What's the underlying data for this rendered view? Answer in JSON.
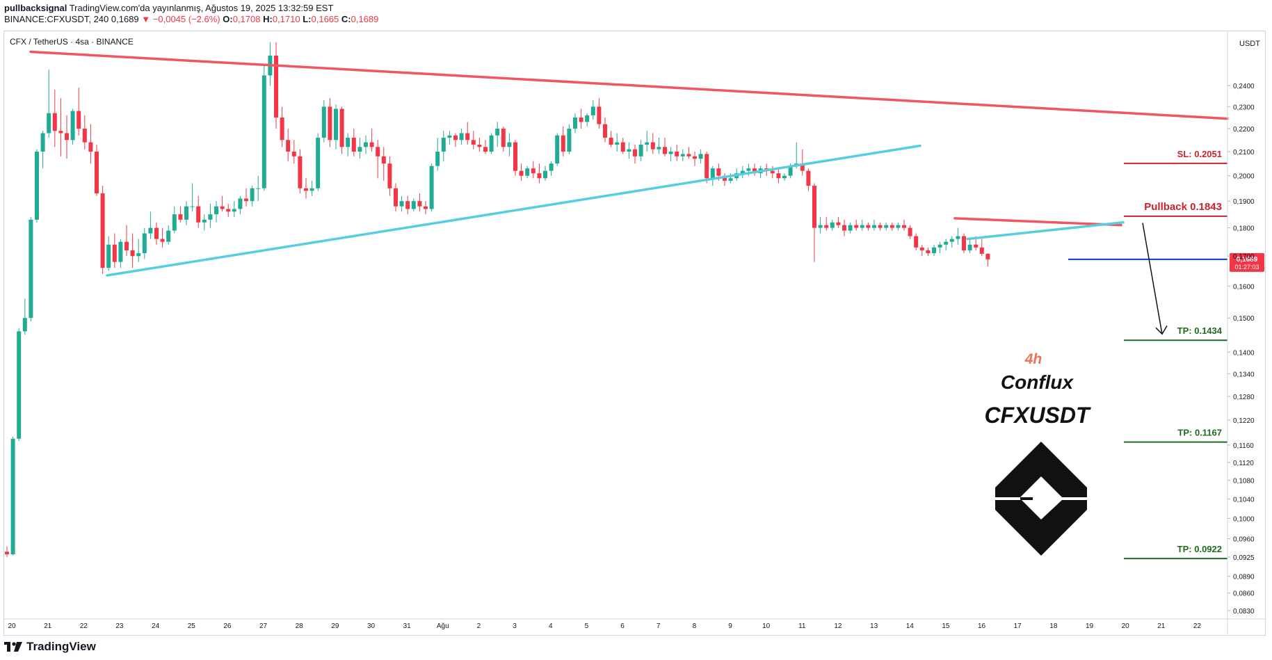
{
  "header": {
    "publisher": "pullbacksignal",
    "published_text": "TradingView.com'da yayınlanmış, Ağustos 19, 2025 13:32:59 EST",
    "symbol": "BINANCE:CFXUSDT, 240",
    "last": "0,1689",
    "change": "−0,0045 (−2.6%)",
    "o_label": "O:",
    "o_value": "0,1708",
    "h_label": "H:",
    "h_value": "0,1710",
    "l_label": "L:",
    "l_value": "0,1665",
    "c_label": "C:",
    "c_value": "0,1689"
  },
  "pane_legend": "CFX / TetherUS · 4sa · BINANCE",
  "currency": "USDT",
  "price_badge": {
    "price": "0,1689",
    "countdown": "01:27:03"
  },
  "brand": {
    "footer": "TradingView"
  },
  "annotations": {
    "timeframe": "4h",
    "name": "Conflux",
    "ticker": "CFXUSDT",
    "sl": "SL: 0.2051",
    "pullback": "Pullback 0.1843",
    "tp1": "TP: 0.1434",
    "tp2": "TP: 0.1167",
    "tp3": "TP: 0.0922"
  },
  "colors": {
    "up": "#22ab94",
    "down": "#f23645",
    "resistance": "#f05660",
    "support": "#55cfe0",
    "sl": "#c8232c",
    "tp": "#1e6b1e",
    "current": "#0d3cb5",
    "accent": "#ec7354"
  },
  "chart_data": {
    "type": "candlestick",
    "title": "CFX / TetherUS · 4sa · BINANCE",
    "y_axis_label": "USDT",
    "y_ticks": [
      "0,2400",
      "0,2300",
      "0,2200",
      "0,2100",
      "0,2000",
      "0,1900",
      "0,1800",
      "0,1700",
      "0,1600",
      "0,1500",
      "0,1400",
      "0,1340",
      "0,1280",
      "0,1220",
      "0,1160",
      "0,1120",
      "0,1080",
      "0,1040",
      "0,1000",
      "0,0960",
      "0,0925",
      "0,0890",
      "0,0860",
      "0,0830"
    ],
    "x_ticks": [
      "20",
      "21",
      "22",
      "23",
      "24",
      "25",
      "26",
      "27",
      "28",
      "29",
      "30",
      "31",
      "Ağu",
      "2",
      "3",
      "4",
      "5",
      "6",
      "7",
      "8",
      "9",
      "10",
      "11",
      "12",
      "13",
      "14",
      "15",
      "16",
      "17",
      "18",
      "19",
      "20",
      "21",
      "22"
    ],
    "ylim": [
      0.0825,
      0.262
    ],
    "log_scale": true,
    "candles": [
      [
        0.0935,
        0.0945,
        0.0925,
        0.093
      ],
      [
        0.093,
        0.118,
        0.0928,
        0.1175
      ],
      [
        0.1175,
        0.147,
        0.117,
        0.146
      ],
      [
        0.146,
        0.156,
        0.145,
        0.15
      ],
      [
        0.15,
        0.184,
        0.149,
        0.183
      ],
      [
        0.183,
        0.211,
        0.182,
        0.21
      ],
      [
        0.21,
        0.219,
        0.203,
        0.218
      ],
      [
        0.218,
        0.248,
        0.216,
        0.227
      ],
      [
        0.227,
        0.238,
        0.212,
        0.219
      ],
      [
        0.219,
        0.234,
        0.208,
        0.218
      ],
      [
        0.218,
        0.226,
        0.207,
        0.215
      ],
      [
        0.215,
        0.229,
        0.213,
        0.228
      ],
      [
        0.228,
        0.239,
        0.217,
        0.22
      ],
      [
        0.22,
        0.226,
        0.211,
        0.214
      ],
      [
        0.214,
        0.222,
        0.205,
        0.21
      ],
      [
        0.21,
        0.213,
        0.192,
        0.193
      ],
      [
        0.193,
        0.196,
        0.164,
        0.166
      ],
      [
        0.166,
        0.177,
        0.165,
        0.174
      ],
      [
        0.174,
        0.178,
        0.166,
        0.168
      ],
      [
        0.168,
        0.176,
        0.166,
        0.175
      ],
      [
        0.175,
        0.181,
        0.17,
        0.172
      ],
      [
        0.172,
        0.178,
        0.166,
        0.17
      ],
      [
        0.17,
        0.176,
        0.168,
        0.171
      ],
      [
        0.171,
        0.18,
        0.169,
        0.178
      ],
      [
        0.178,
        0.186,
        0.176,
        0.18
      ],
      [
        0.18,
        0.182,
        0.174,
        0.176
      ],
      [
        0.176,
        0.18,
        0.173,
        0.175
      ],
      [
        0.175,
        0.181,
        0.174,
        0.179
      ],
      [
        0.179,
        0.188,
        0.178,
        0.185
      ],
      [
        0.185,
        0.188,
        0.182,
        0.183
      ],
      [
        0.183,
        0.19,
        0.181,
        0.188
      ],
      [
        0.188,
        0.197,
        0.186,
        0.188
      ],
      [
        0.188,
        0.192,
        0.18,
        0.182
      ],
      [
        0.182,
        0.185,
        0.179,
        0.183
      ],
      [
        0.183,
        0.189,
        0.18,
        0.185
      ],
      [
        0.185,
        0.19,
        0.182,
        0.188
      ],
      [
        0.188,
        0.192,
        0.186,
        0.187
      ],
      [
        0.187,
        0.189,
        0.184,
        0.186
      ],
      [
        0.186,
        0.19,
        0.184,
        0.187
      ],
      [
        0.187,
        0.192,
        0.185,
        0.191
      ],
      [
        0.191,
        0.195,
        0.188,
        0.19
      ],
      [
        0.19,
        0.196,
        0.188,
        0.195
      ],
      [
        0.195,
        0.2,
        0.19,
        0.195
      ],
      [
        0.195,
        0.25,
        0.194,
        0.245
      ],
      [
        0.245,
        0.262,
        0.24,
        0.255
      ],
      [
        0.255,
        0.262,
        0.22,
        0.225
      ],
      [
        0.225,
        0.23,
        0.212,
        0.215
      ],
      [
        0.215,
        0.22,
        0.206,
        0.21
      ],
      [
        0.21,
        0.215,
        0.205,
        0.208
      ],
      [
        0.208,
        0.211,
        0.193,
        0.195
      ],
      [
        0.195,
        0.199,
        0.191,
        0.194
      ],
      [
        0.194,
        0.198,
        0.192,
        0.195
      ],
      [
        0.195,
        0.218,
        0.194,
        0.216
      ],
      [
        0.216,
        0.233,
        0.214,
        0.23
      ],
      [
        0.23,
        0.234,
        0.212,
        0.215
      ],
      [
        0.215,
        0.231,
        0.211,
        0.229
      ],
      [
        0.229,
        0.23,
        0.209,
        0.212
      ],
      [
        0.212,
        0.218,
        0.208,
        0.216
      ],
      [
        0.216,
        0.22,
        0.208,
        0.21
      ],
      [
        0.21,
        0.216,
        0.207,
        0.212
      ],
      [
        0.212,
        0.217,
        0.209,
        0.214
      ],
      [
        0.214,
        0.22,
        0.21,
        0.212
      ],
      [
        0.212,
        0.215,
        0.199,
        0.208
      ],
      [
        0.208,
        0.212,
        0.198,
        0.205
      ],
      [
        0.205,
        0.208,
        0.192,
        0.195
      ],
      [
        0.195,
        0.197,
        0.186,
        0.188
      ],
      [
        0.188,
        0.192,
        0.186,
        0.19
      ],
      [
        0.19,
        0.192,
        0.185,
        0.187
      ],
      [
        0.187,
        0.191,
        0.186,
        0.19
      ],
      [
        0.19,
        0.193,
        0.186,
        0.188
      ],
      [
        0.188,
        0.19,
        0.185,
        0.187
      ],
      [
        0.187,
        0.205,
        0.186,
        0.204
      ],
      [
        0.204,
        0.216,
        0.202,
        0.21
      ],
      [
        0.21,
        0.219,
        0.206,
        0.216
      ],
      [
        0.216,
        0.219,
        0.213,
        0.217
      ],
      [
        0.217,
        0.218,
        0.212,
        0.215
      ],
      [
        0.215,
        0.22,
        0.213,
        0.218
      ],
      [
        0.218,
        0.223,
        0.213,
        0.215
      ],
      [
        0.215,
        0.219,
        0.211,
        0.213
      ],
      [
        0.213,
        0.216,
        0.21,
        0.212
      ],
      [
        0.212,
        0.215,
        0.209,
        0.21
      ],
      [
        0.21,
        0.218,
        0.209,
        0.217
      ],
      [
        0.217,
        0.223,
        0.212,
        0.22
      ],
      [
        0.22,
        0.221,
        0.21,
        0.212
      ],
      [
        0.212,
        0.218,
        0.208,
        0.214
      ],
      [
        0.214,
        0.215,
        0.2,
        0.202
      ],
      [
        0.202,
        0.205,
        0.198,
        0.2
      ],
      [
        0.2,
        0.204,
        0.199,
        0.203
      ],
      [
        0.203,
        0.206,
        0.199,
        0.201
      ],
      [
        0.201,
        0.205,
        0.197,
        0.199
      ],
      [
        0.199,
        0.204,
        0.198,
        0.202
      ],
      [
        0.202,
        0.206,
        0.2,
        0.205
      ],
      [
        0.205,
        0.218,
        0.204,
        0.217
      ],
      [
        0.217,
        0.221,
        0.208,
        0.21
      ],
      [
        0.21,
        0.222,
        0.209,
        0.22
      ],
      [
        0.22,
        0.227,
        0.218,
        0.225
      ],
      [
        0.225,
        0.229,
        0.22,
        0.223
      ],
      [
        0.223,
        0.227,
        0.221,
        0.226
      ],
      [
        0.226,
        0.233,
        0.224,
        0.23
      ],
      [
        0.23,
        0.234,
        0.22,
        0.222
      ],
      [
        0.222,
        0.225,
        0.214,
        0.216
      ],
      [
        0.216,
        0.219,
        0.212,
        0.213
      ],
      [
        0.213,
        0.218,
        0.21,
        0.214
      ],
      [
        0.214,
        0.216,
        0.209,
        0.21
      ],
      [
        0.21,
        0.214,
        0.207,
        0.211
      ],
      [
        0.211,
        0.213,
        0.205,
        0.208
      ],
      [
        0.208,
        0.215,
        0.206,
        0.213
      ],
      [
        0.213,
        0.219,
        0.21,
        0.214
      ],
      [
        0.214,
        0.218,
        0.209,
        0.211
      ],
      [
        0.211,
        0.216,
        0.209,
        0.212
      ],
      [
        0.212,
        0.216,
        0.208,
        0.209
      ],
      [
        0.209,
        0.212,
        0.206,
        0.21
      ],
      [
        0.21,
        0.213,
        0.206,
        0.208
      ],
      [
        0.208,
        0.211,
        0.206,
        0.209
      ],
      [
        0.209,
        0.212,
        0.207,
        0.208
      ],
      [
        0.208,
        0.21,
        0.204,
        0.207
      ],
      [
        0.207,
        0.211,
        0.205,
        0.209
      ],
      [
        0.209,
        0.21,
        0.197,
        0.199
      ],
      [
        0.199,
        0.204,
        0.196,
        0.203
      ],
      [
        0.203,
        0.205,
        0.198,
        0.2
      ],
      [
        0.2,
        0.201,
        0.196,
        0.198
      ],
      [
        0.198,
        0.201,
        0.197,
        0.199
      ],
      [
        0.199,
        0.203,
        0.198,
        0.201
      ],
      [
        0.201,
        0.204,
        0.199,
        0.202
      ],
      [
        0.202,
        0.205,
        0.2,
        0.203
      ],
      [
        0.203,
        0.205,
        0.2,
        0.201
      ],
      [
        0.201,
        0.204,
        0.199,
        0.203
      ],
      [
        0.203,
        0.205,
        0.2,
        0.202
      ],
      [
        0.202,
        0.204,
        0.199,
        0.201
      ],
      [
        0.201,
        0.203,
        0.197,
        0.199
      ],
      [
        0.199,
        0.201,
        0.198,
        0.2
      ],
      [
        0.2,
        0.205,
        0.199,
        0.204
      ],
      [
        0.204,
        0.214,
        0.203,
        0.205
      ],
      [
        0.205,
        0.211,
        0.2,
        0.202
      ],
      [
        0.202,
        0.203,
        0.194,
        0.196
      ],
      [
        0.196,
        0.197,
        0.168,
        0.18
      ],
      [
        0.18,
        0.184,
        0.178,
        0.181
      ],
      [
        0.181,
        0.184,
        0.179,
        0.18
      ],
      [
        0.18,
        0.183,
        0.179,
        0.182
      ],
      [
        0.182,
        0.184,
        0.18,
        0.181
      ],
      [
        0.181,
        0.183,
        0.177,
        0.179
      ],
      [
        0.179,
        0.182,
        0.178,
        0.181
      ],
      [
        0.181,
        0.183,
        0.179,
        0.18
      ],
      [
        0.18,
        0.183,
        0.179,
        0.181
      ],
      [
        0.181,
        0.182,
        0.179,
        0.18
      ],
      [
        0.18,
        0.183,
        0.179,
        0.181
      ],
      [
        0.181,
        0.182,
        0.179,
        0.18
      ],
      [
        0.18,
        0.182,
        0.179,
        0.181
      ],
      [
        0.181,
        0.182,
        0.179,
        0.18
      ],
      [
        0.18,
        0.182,
        0.179,
        0.181
      ],
      [
        0.181,
        0.183,
        0.179,
        0.18
      ],
      [
        0.18,
        0.181,
        0.176,
        0.177
      ],
      [
        0.177,
        0.178,
        0.172,
        0.173
      ],
      [
        0.173,
        0.174,
        0.17,
        0.172
      ],
      [
        0.172,
        0.173,
        0.17,
        0.171
      ],
      [
        0.171,
        0.174,
        0.17,
        0.173
      ],
      [
        0.173,
        0.175,
        0.171,
        0.174
      ],
      [
        0.174,
        0.176,
        0.172,
        0.175
      ],
      [
        0.175,
        0.177,
        0.173,
        0.176
      ],
      [
        0.176,
        0.18,
        0.174,
        0.177
      ],
      [
        0.177,
        0.178,
        0.171,
        0.172
      ],
      [
        0.172,
        0.176,
        0.171,
        0.174
      ],
      [
        0.174,
        0.177,
        0.172,
        0.173
      ],
      [
        0.173,
        0.176,
        0.17,
        0.1708
      ],
      [
        0.1708,
        0.171,
        0.1665,
        0.1689
      ]
    ],
    "candle_cols": [
      0,
      1,
      2,
      3,
      4,
      5,
      6,
      7,
      8,
      9,
      10,
      11,
      12,
      13,
      14,
      15,
      16,
      17,
      18,
      19,
      20,
      21,
      22,
      23,
      24,
      25,
      26,
      27,
      28,
      29,
      30,
      31,
      32,
      33,
      34,
      35,
      36,
      37,
      38,
      39,
      40,
      41,
      42,
      43,
      44,
      45,
      46,
      47,
      48,
      49,
      50,
      51,
      52,
      53,
      54,
      55,
      56,
      57,
      58,
      59,
      60,
      61,
      62,
      63,
      64,
      65,
      66,
      67,
      68,
      69,
      70,
      71,
      72,
      73,
      74,
      75,
      76,
      77,
      78,
      79,
      80,
      81,
      82,
      83,
      84,
      85,
      86,
      87,
      88,
      89,
      90,
      91,
      92,
      93,
      94,
      95,
      96,
      97,
      98,
      99,
      100,
      101,
      102,
      103,
      104,
      105,
      106,
      107,
      108,
      109,
      110,
      111,
      112,
      113,
      114,
      115,
      116,
      117,
      118,
      119,
      120,
      121,
      122,
      123,
      124,
      125,
      126,
      127,
      128,
      129,
      130,
      131,
      132,
      133,
      134,
      135,
      136,
      137,
      138,
      139,
      140,
      141,
      142,
      143,
      144,
      145,
      146,
      147,
      148,
      149,
      150,
      151,
      152,
      153,
      154,
      155,
      156,
      157,
      158,
      159,
      160,
      161,
      162,
      163,
      164,
      165,
      166,
      167,
      168,
      169,
      170,
      171,
      172,
      173,
      174,
      175,
      176,
      177,
      178,
      179,
      180
    ],
    "levels": {
      "sl": 0.2051,
      "pullback": 0.1843,
      "tp1": 0.1434,
      "tp2": 0.1167,
      "tp3": 0.0922,
      "current": 0.1689
    },
    "trendlines": {
      "resistance": {
        "from": [
          "20",
          0.257
        ],
        "to": [
          "22",
          0.2245
        ]
      },
      "support": {
        "from": [
          "23",
          0.1635
        ],
        "to": [
          "14",
          0.2125
        ]
      },
      "flag_top": {
        "from": [
          "15",
          0.1835
        ],
        "to": [
          "19",
          0.181
        ]
      },
      "flag_bottom": {
        "from": [
          "15",
          0.176
        ],
        "to": [
          "19",
          0.182
        ]
      }
    }
  }
}
